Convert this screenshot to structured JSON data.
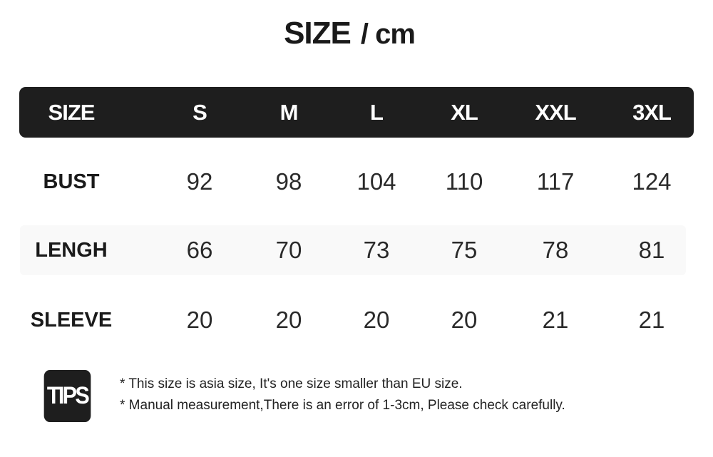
{
  "title": {
    "main": "SIZE",
    "unit": "/ cm"
  },
  "table": {
    "headers": [
      "SIZE",
      "S",
      "M",
      "L",
      "XL",
      "XXL",
      "3XL"
    ],
    "rows": [
      {
        "label": "BUST",
        "values": [
          "92",
          "98",
          "104",
          "110",
          "117",
          "124"
        ]
      },
      {
        "label": "LENGH",
        "values": [
          "66",
          "70",
          "73",
          "75",
          "78",
          "81"
        ]
      },
      {
        "label": "SLEEVE",
        "values": [
          "20",
          "20",
          "20",
          "20",
          "21",
          "21"
        ]
      }
    ]
  },
  "tips": {
    "badge": "TIPS",
    "notes": [
      "* This size is asia size, It's one size smaller than EU size.",
      "* Manual measurement,There is an error of 1-3cm, Please check carefully."
    ]
  },
  "colors": {
    "header_bg": "#1e1e1e",
    "header_text": "#ffffff",
    "alt_row_bg": "#f9f9f9"
  }
}
